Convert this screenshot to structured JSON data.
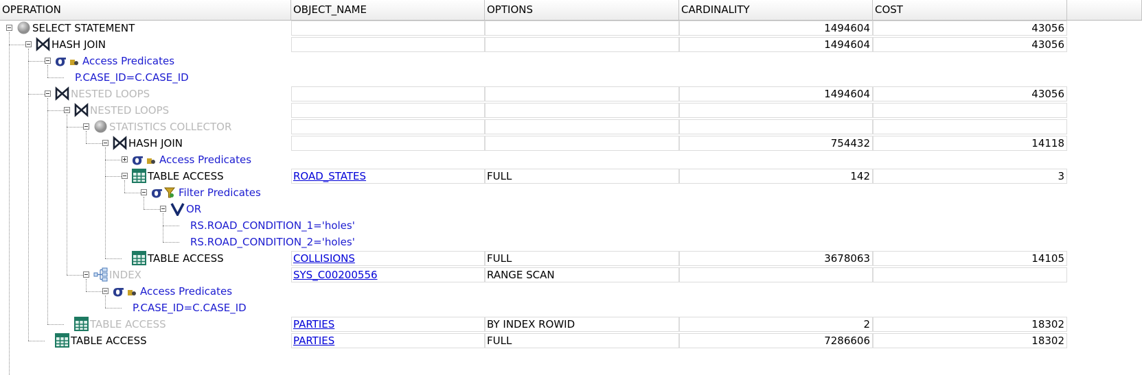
{
  "columns": {
    "operation": "OPERATION",
    "object_name": "OBJECT_NAME",
    "options": "OPTIONS",
    "cardinality": "CARDINALITY",
    "cost": "COST"
  },
  "rows": [
    {
      "level": 0,
      "expander": "open",
      "icon": "circle-icon",
      "label": "SELECT STATEMENT",
      "style": "normal",
      "cells": true,
      "object": "",
      "options": "",
      "cardinality": "1494604",
      "cost": "43056"
    },
    {
      "level": 1,
      "expander": "open",
      "icon": "join-icon",
      "label": "HASH JOIN",
      "style": "normal",
      "cells": true,
      "object": "",
      "options": "",
      "cardinality": "1494604",
      "cost": "43056"
    },
    {
      "level": 2,
      "expander": "open",
      "icon": "access-predicate-icon",
      "label": "Access Predicates",
      "style": "pred",
      "cells": false
    },
    {
      "level": 3,
      "expander": "none",
      "icon": "none",
      "label": "P.CASE_ID=C.CASE_ID",
      "style": "pred",
      "cells": false
    },
    {
      "level": 2,
      "expander": "open",
      "icon": "join-icon",
      "label": "NESTED LOOPS",
      "style": "gray",
      "cells": true,
      "object": "",
      "options": "",
      "cardinality": "1494604",
      "cost": "43056"
    },
    {
      "level": 3,
      "expander": "open",
      "icon": "join-icon",
      "label": "NESTED LOOPS",
      "style": "gray",
      "cells": true,
      "object": "",
      "options": "",
      "cardinality": "",
      "cost": ""
    },
    {
      "level": 4,
      "expander": "open",
      "icon": "circle-icon",
      "label": "STATISTICS COLLECTOR",
      "style": "gray",
      "cells": true,
      "object": "",
      "options": "",
      "cardinality": "",
      "cost": ""
    },
    {
      "level": 5,
      "expander": "open",
      "icon": "join-icon",
      "label": "HASH JOIN",
      "style": "normal",
      "cells": true,
      "object": "",
      "options": "",
      "cardinality": "754432",
      "cost": "14118"
    },
    {
      "level": 6,
      "expander": "closed",
      "icon": "access-predicate-icon",
      "label": "Access Predicates",
      "style": "pred",
      "cells": false
    },
    {
      "level": 6,
      "expander": "open",
      "icon": "table-icon",
      "label": "TABLE ACCESS",
      "style": "normal",
      "cells": true,
      "object": "ROAD_STATES",
      "options": "FULL",
      "cardinality": "142",
      "cost": "3"
    },
    {
      "level": 7,
      "expander": "open",
      "icon": "filter-predicate-icon",
      "label": "Filter Predicates",
      "style": "pred",
      "cells": false
    },
    {
      "level": 8,
      "expander": "open",
      "icon": "or-icon",
      "label": "OR",
      "style": "pred",
      "cells": false
    },
    {
      "level": 9,
      "expander": "none",
      "icon": "none",
      "label": "RS.ROAD_CONDITION_1='holes'",
      "style": "pred",
      "cells": false
    },
    {
      "level": 9,
      "expander": "none",
      "icon": "none",
      "label": "RS.ROAD_CONDITION_2='holes'",
      "style": "pred",
      "cells": false
    },
    {
      "level": 6,
      "expander": "none",
      "icon": "table-icon",
      "label": "TABLE ACCESS",
      "style": "normal",
      "cells": true,
      "object": "COLLISIONS",
      "options": "FULL",
      "cardinality": "3678063",
      "cost": "14105"
    },
    {
      "level": 4,
      "expander": "open",
      "icon": "index-icon",
      "label": "INDEX",
      "style": "gray",
      "cells": true,
      "object": "SYS_C00200556",
      "options": "RANGE SCAN",
      "cardinality": "",
      "cost": ""
    },
    {
      "level": 5,
      "expander": "open",
      "icon": "access-predicate-icon",
      "label": "Access Predicates",
      "style": "pred",
      "cells": false
    },
    {
      "level": 6,
      "expander": "none",
      "icon": "none",
      "label": "P.CASE_ID=C.CASE_ID",
      "style": "pred",
      "cells": false
    },
    {
      "level": 3,
      "expander": "none",
      "icon": "table-icon",
      "label": "TABLE ACCESS",
      "style": "gray",
      "cells": true,
      "object": "PARTIES",
      "options": "BY INDEX ROWID",
      "cardinality": "2",
      "cost": "18302"
    },
    {
      "level": 2,
      "expander": "none",
      "icon": "table-icon",
      "label": "TABLE ACCESS",
      "style": "normal",
      "cells": true,
      "object": "PARTIES",
      "options": "FULL",
      "cardinality": "7286606",
      "cost": "18302"
    }
  ],
  "colors": {
    "predicate": "#1b1bd0",
    "disabled": "#b9b9b9",
    "link": "#0000d8",
    "tableIcon": "#1e7a62",
    "joinIcon": "#1a2233",
    "orIcon": "#152a6e"
  }
}
